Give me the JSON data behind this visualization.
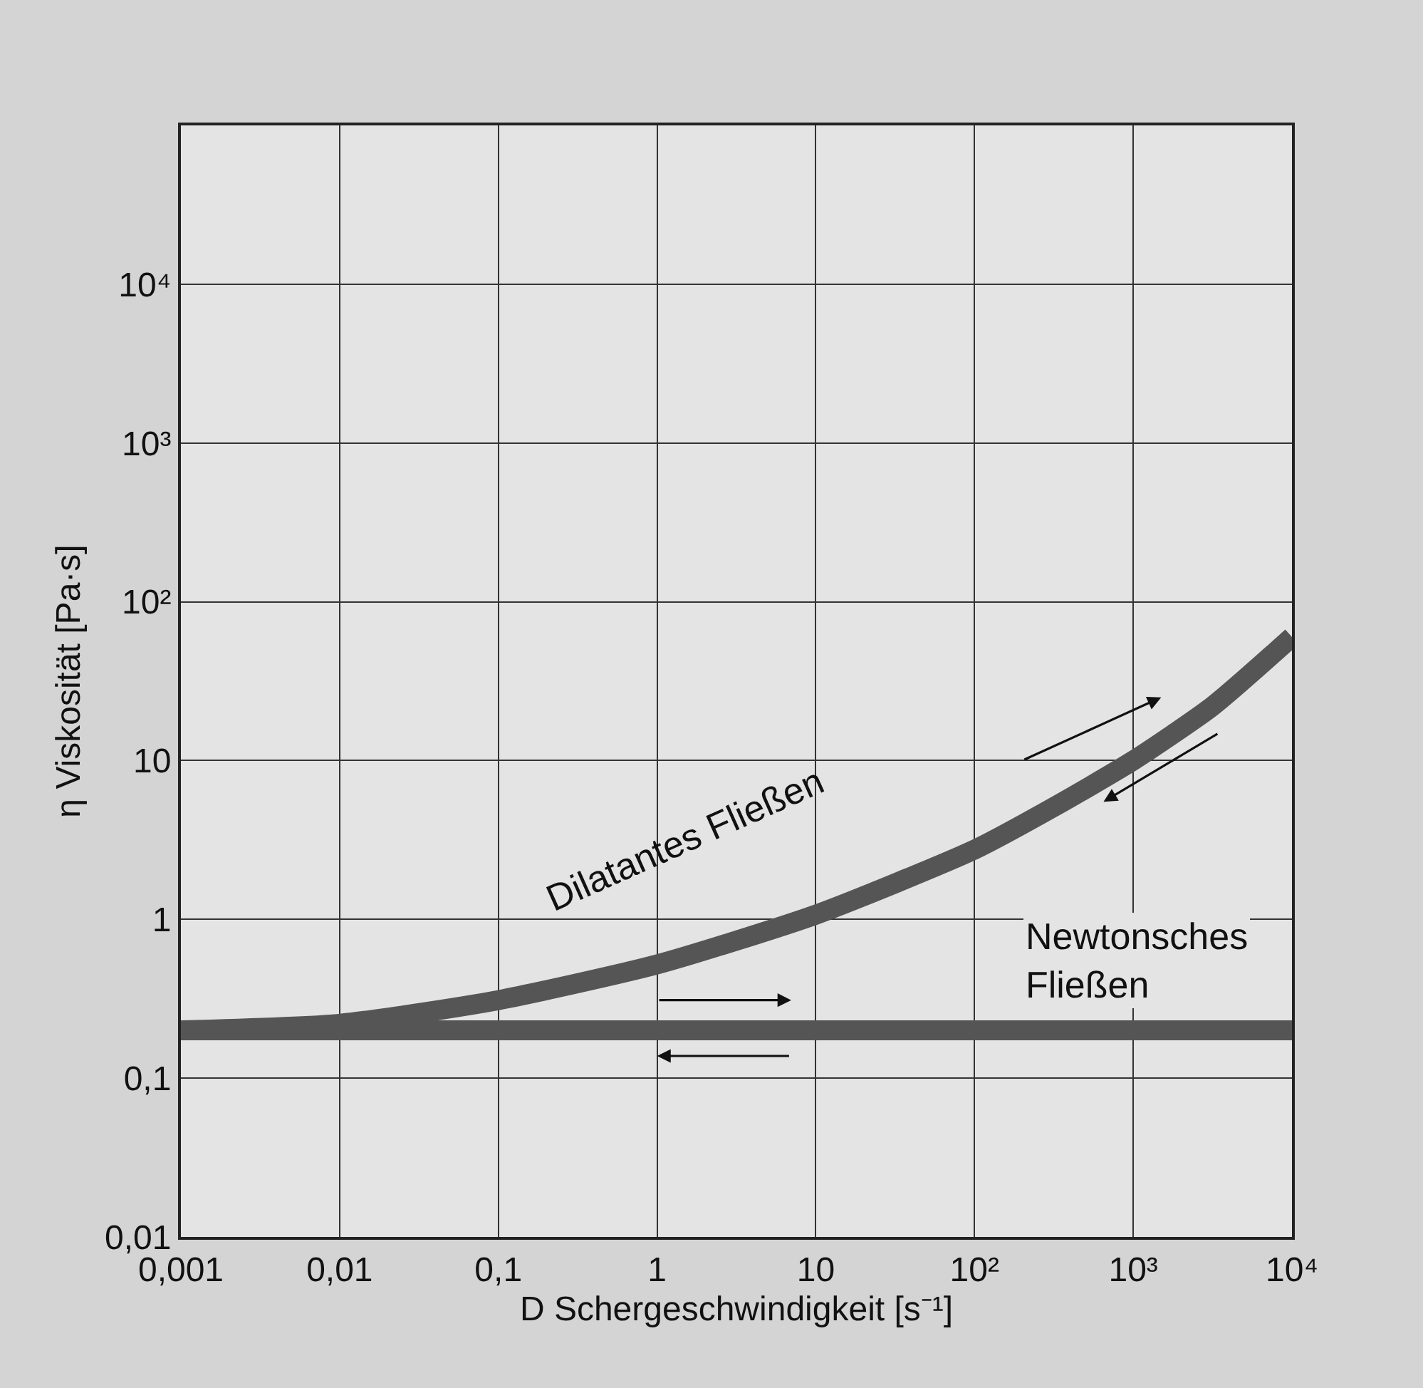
{
  "chart_data": {
    "type": "line",
    "xlabel": "D Schergeschwindigkeit [s⁻¹]",
    "ylabel": "η Viskosität [Pa·s]",
    "log": "xy",
    "grid": true,
    "legend": false,
    "marker": "none",
    "line_style": "solid",
    "xlim": [
      0.001,
      10000
    ],
    "ylim": [
      0.01,
      100000
    ],
    "xticks": [
      {
        "value": 0.001,
        "label": "0,001"
      },
      {
        "value": 0.01,
        "label": "0,01"
      },
      {
        "value": 0.1,
        "label": "0,1"
      },
      1,
      10,
      {
        "value": 100,
        "label": "10²"
      },
      {
        "value": 1000,
        "label": "10³"
      },
      {
        "value": 10000,
        "label": "10⁴"
      }
    ],
    "yticks": [
      {
        "value": 0.01,
        "label": "0,01"
      },
      {
        "value": 0.1,
        "label": "0,1"
      },
      1,
      10,
      {
        "value": 100,
        "label": "10²"
      },
      {
        "value": 1000,
        "label": "10³"
      },
      {
        "value": 10000,
        "label": "10⁴"
      },
      {
        "value": 100000,
        "label": null
      }
    ],
    "series": [
      {
        "name": "Dilatantes Fließen",
        "color": "#555555",
        "x": [
          0.001,
          0.01,
          0.1,
          1,
          10,
          100,
          316,
          1000,
          3160,
          10000
        ],
        "values": [
          0.2,
          0.22,
          0.31,
          0.52,
          1.07,
          2.75,
          5.1,
          10,
          22,
          60
        ]
      },
      {
        "name": "Newtonsches Fließen",
        "color": "#555555",
        "x": [
          0.001,
          10000
        ],
        "values": [
          0.2,
          0.2
        ]
      }
    ]
  }
}
